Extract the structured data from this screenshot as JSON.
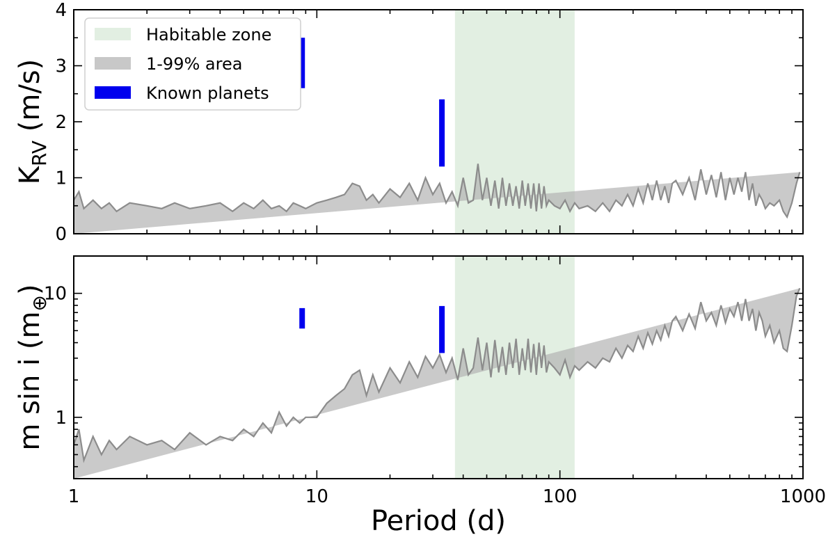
{
  "chart_data": [
    {
      "id": "top",
      "type": "area",
      "x_scale": "log",
      "xlim": [
        1,
        1000
      ],
      "y_scale": "linear",
      "ylim": [
        0,
        4
      ],
      "ylabel_main": "K",
      "ylabel_sub": "RV",
      "ylabel_rest": " (m/s)",
      "yticks": [
        0,
        1,
        2,
        3,
        4
      ],
      "ytick_labels": [
        "0",
        "1",
        "2",
        "3",
        "4"
      ],
      "habitable_zone": [
        37,
        115
      ],
      "upper_envelope": {
        "period": [
          1,
          1.05,
          1.1,
          1.2,
          1.3,
          1.4,
          1.5,
          1.7,
          2,
          2.3,
          2.6,
          3,
          3.5,
          4,
          4.5,
          5,
          5.5,
          6,
          6.5,
          7,
          7.5,
          8,
          8.5,
          9,
          10,
          11,
          12,
          13,
          14,
          15,
          16,
          17,
          18,
          20,
          22,
          24,
          26,
          28,
          30,
          32,
          34,
          36,
          38,
          40,
          42,
          44,
          46,
          48,
          50,
          52,
          54,
          56,
          58,
          60,
          62,
          64,
          66,
          68,
          70,
          72,
          74,
          76,
          78,
          80,
          82,
          84,
          86,
          88,
          90,
          95,
          100,
          105,
          110,
          115,
          120,
          130,
          140,
          150,
          160,
          170,
          180,
          190,
          200,
          210,
          220,
          230,
          240,
          250,
          260,
          270,
          280,
          290,
          300,
          320,
          340,
          360,
          380,
          400,
          420,
          440,
          460,
          480,
          500,
          520,
          540,
          560,
          580,
          600,
          620,
          640,
          660,
          680,
          700,
          730,
          760,
          800,
          830,
          860,
          900,
          940,
          970,
          1000
        ],
        "k": [
          0.6,
          0.75,
          0.45,
          0.6,
          0.45,
          0.55,
          0.4,
          0.55,
          0.5,
          0.45,
          0.55,
          0.45,
          0.5,
          0.55,
          0.4,
          0.55,
          0.45,
          0.6,
          0.45,
          0.5,
          0.4,
          0.55,
          0.5,
          0.45,
          0.55,
          0.6,
          0.65,
          0.7,
          0.9,
          0.85,
          0.6,
          0.7,
          0.55,
          0.8,
          0.65,
          0.9,
          0.6,
          1.0,
          0.7,
          0.9,
          0.55,
          0.75,
          0.5,
          1.0,
          0.55,
          0.6,
          1.25,
          0.6,
          1.0,
          0.5,
          0.95,
          0.45,
          1.0,
          0.5,
          0.9,
          0.5,
          0.85,
          0.45,
          0.95,
          0.5,
          0.9,
          0.45,
          0.9,
          0.4,
          0.9,
          0.45,
          0.85,
          0.5,
          0.6,
          0.5,
          0.45,
          0.6,
          0.4,
          0.55,
          0.45,
          0.5,
          0.4,
          0.55,
          0.4,
          0.6,
          0.5,
          0.7,
          0.5,
          0.8,
          0.55,
          0.9,
          0.6,
          0.95,
          0.6,
          0.85,
          0.55,
          0.9,
          0.95,
          0.7,
          1.0,
          0.6,
          1.15,
          0.7,
          1.05,
          0.65,
          1.1,
          0.6,
          1.0,
          0.7,
          1.0,
          0.75,
          1.1,
          0.6,
          0.9,
          0.5,
          0.7,
          0.6,
          0.45,
          0.55,
          0.5,
          0.6,
          0.4,
          0.3,
          0.55,
          0.9,
          1.1
        ]
      },
      "known_planets": [
        {
          "period": 8.7,
          "k_low": 2.6,
          "k_high": 3.5
        },
        {
          "period": 32.7,
          "k_low": 1.2,
          "k_high": 2.4
        }
      ],
      "legend": {
        "placement": "top-left",
        "entries": [
          {
            "label": "Habitable zone",
            "color": "#e2efe2"
          },
          {
            "label": "1-99% area",
            "color": "#c8c8c8"
          },
          {
            "label": "Known planets",
            "color": "#0000ee"
          }
        ]
      }
    },
    {
      "id": "bottom",
      "type": "area",
      "x_scale": "log",
      "xlim": [
        1,
        1000
      ],
      "y_scale": "log",
      "ylim": [
        0.32,
        20
      ],
      "ylabel_main": "m sin i (m",
      "ylabel_sub": "⊕",
      "ylabel_rest": ")",
      "yticks": [
        1,
        10
      ],
      "ytick_labels": [
        "1",
        "10"
      ],
      "habitable_zone": [
        37,
        115
      ],
      "xlabel": "Period (d)",
      "xticks": [
        1,
        10,
        100,
        1000
      ],
      "xtick_labels": [
        "1",
        "10",
        "100",
        "1000"
      ],
      "upper_envelope": {
        "period": [
          1,
          1.05,
          1.1,
          1.2,
          1.3,
          1.4,
          1.5,
          1.7,
          2,
          2.3,
          2.6,
          3,
          3.5,
          4,
          4.5,
          5,
          5.5,
          6,
          6.5,
          7,
          7.5,
          8,
          8.5,
          9,
          10,
          11,
          12,
          13,
          14,
          15,
          16,
          17,
          18,
          20,
          22,
          24,
          26,
          28,
          30,
          32,
          34,
          36,
          38,
          40,
          42,
          44,
          46,
          48,
          50,
          52,
          54,
          56,
          58,
          60,
          62,
          64,
          66,
          68,
          70,
          72,
          74,
          76,
          78,
          80,
          82,
          84,
          86,
          88,
          90,
          95,
          100,
          105,
          110,
          115,
          120,
          130,
          140,
          150,
          160,
          170,
          180,
          190,
          200,
          210,
          220,
          230,
          240,
          250,
          260,
          270,
          280,
          290,
          300,
          320,
          340,
          360,
          380,
          400,
          420,
          440,
          460,
          480,
          500,
          520,
          540,
          560,
          580,
          600,
          620,
          640,
          660,
          680,
          700,
          730,
          760,
          800,
          830,
          860,
          900,
          940,
          970,
          1000
        ],
        "m": [
          0.6,
          0.8,
          0.45,
          0.7,
          0.5,
          0.65,
          0.55,
          0.7,
          0.6,
          0.65,
          0.55,
          0.75,
          0.6,
          0.7,
          0.65,
          0.8,
          0.7,
          0.9,
          0.75,
          1.1,
          0.85,
          1.0,
          0.9,
          1.0,
          1.0,
          1.3,
          1.5,
          1.7,
          2.2,
          2.4,
          1.5,
          2.2,
          1.6,
          2.5,
          1.9,
          2.8,
          2.1,
          3.1,
          2.5,
          3.2,
          2.3,
          3.0,
          2.0,
          3.6,
          2.2,
          2.5,
          4.4,
          2.4,
          4.0,
          2.1,
          4.2,
          2.3,
          3.7,
          2.2,
          4.0,
          2.5,
          4.3,
          2.2,
          3.6,
          2.4,
          4.3,
          2.3,
          3.9,
          2.2,
          4.0,
          2.5,
          3.8,
          2.3,
          2.8,
          2.5,
          2.2,
          2.9,
          2.1,
          2.6,
          2.4,
          2.8,
          2.5,
          3.0,
          2.8,
          3.6,
          3.0,
          3.8,
          3.4,
          4.5,
          3.6,
          4.8,
          3.9,
          5.0,
          4.2,
          5.5,
          4.5,
          6.0,
          6.5,
          5.0,
          6.8,
          5.2,
          8.5,
          6.0,
          7.0,
          5.5,
          8.0,
          5.8,
          7.5,
          6.5,
          8.5,
          6.0,
          9.0,
          6.0,
          7.5,
          5.0,
          7.0,
          6.0,
          4.5,
          5.5,
          4.0,
          5.0,
          3.6,
          3.4,
          5.5,
          9.5,
          11.0
        ]
      },
      "known_planets": [
        {
          "period": 8.7,
          "m_low": 5.2,
          "m_high": 7.6
        },
        {
          "period": 32.7,
          "m_low": 3.3,
          "m_high": 7.9
        }
      ]
    }
  ]
}
